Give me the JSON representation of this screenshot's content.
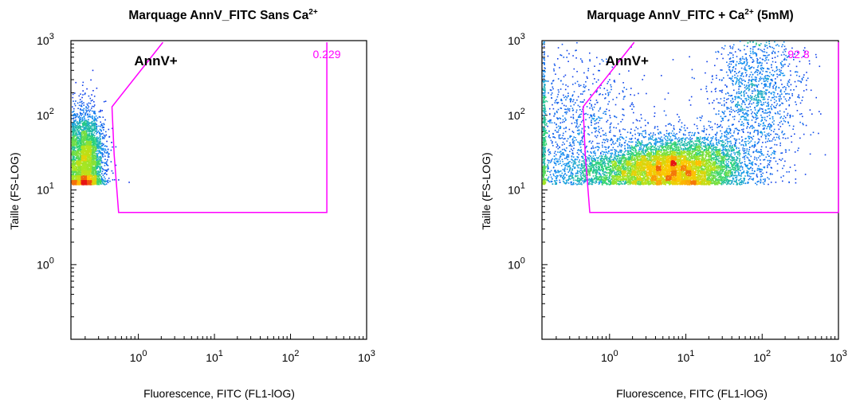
{
  "chart_data": [
    {
      "type": "scatter",
      "title": "Marquage AnnV_FITC Sans Ca",
      "title_superscript": "2+",
      "title_suffix": "",
      "xlabel": "Fluorescence, FITC (FL1-lOG)",
      "ylabel": "Taille (FS-LOG)",
      "x_scale": "log",
      "y_scale": "log",
      "xlim": [
        0.13,
        1000
      ],
      "ylim": [
        0.1,
        1000
      ],
      "x_ticks": [
        {
          "base": "10",
          "exp": "0",
          "value": 1
        },
        {
          "base": "10",
          "exp": "1",
          "value": 10
        },
        {
          "base": "10",
          "exp": "2",
          "value": 100
        },
        {
          "base": "10",
          "exp": "3",
          "value": 1000
        }
      ],
      "y_ticks": [
        {
          "base": "10",
          "exp": "0",
          "value": 1
        },
        {
          "base": "10",
          "exp": "1",
          "value": 10
        },
        {
          "base": "10",
          "exp": "2",
          "value": 100
        },
        {
          "base": "10",
          "exp": "3",
          "value": 1000
        }
      ],
      "gate": {
        "label": "AnnV+",
        "percentage": "0.229",
        "color": "#ff00ff",
        "polygon": [
          [
            2.1,
            950
          ],
          [
            0.45,
            130
          ],
          [
            0.48,
            30
          ],
          [
            0.55,
            5
          ],
          [
            300,
            5
          ],
          [
            300,
            950
          ]
        ]
      },
      "populations": [
        {
          "x_center": 0.2,
          "y_center": 25,
          "x_spread_log": 0.12,
          "y_spread_log": 0.32,
          "n": 3600,
          "peak": "green-yellow"
        }
      ],
      "grid": false,
      "legend": "none"
    },
    {
      "type": "scatter",
      "title": "Marquage AnnV_FITC + Ca",
      "title_superscript": "2+",
      "title_suffix": " (5mM)",
      "xlabel": "Fluorescence, FITC (FL1-lOG)",
      "ylabel": "Taille (FS-LOG)",
      "x_scale": "log",
      "y_scale": "log",
      "xlim": [
        0.13,
        1000
      ],
      "ylim": [
        0.1,
        1000
      ],
      "x_ticks": [
        {
          "base": "10",
          "exp": "0",
          "value": 1
        },
        {
          "base": "10",
          "exp": "1",
          "value": 10
        },
        {
          "base": "10",
          "exp": "2",
          "value": 100
        },
        {
          "base": "10",
          "exp": "3",
          "value": 1000
        }
      ],
      "y_ticks": [
        {
          "base": "10",
          "exp": "0",
          "value": 1
        },
        {
          "base": "10",
          "exp": "1",
          "value": 10
        },
        {
          "base": "10",
          "exp": "2",
          "value": 100
        },
        {
          "base": "10",
          "exp": "3",
          "value": 1000
        }
      ],
      "gate": {
        "label": "AnnV+",
        "percentage": "92.8",
        "color": "#ff00ff",
        "polygon": [
          [
            2.1,
            950
          ],
          [
            0.45,
            130
          ],
          [
            0.48,
            30
          ],
          [
            0.55,
            5
          ],
          [
            1000,
            5
          ],
          [
            1000,
            950
          ]
        ]
      },
      "populations": [
        {
          "x_center": 8,
          "y_center": 22,
          "x_spread_log": 0.45,
          "y_spread_log": 0.2,
          "n": 5200,
          "peak": "red"
        },
        {
          "x_center": 2,
          "y_center": 18,
          "x_spread_log": 0.55,
          "y_spread_log": 0.12,
          "n": 1800,
          "peak": "blue"
        },
        {
          "x_center": 80,
          "y_center": 200,
          "x_spread_log": 0.3,
          "y_spread_log": 0.5,
          "n": 1400,
          "peak": "blue"
        },
        {
          "x_center": 0.3,
          "y_center": 60,
          "x_spread_log": 0.5,
          "y_spread_log": 0.5,
          "n": 1200,
          "peak": "blue"
        }
      ],
      "grid": false,
      "legend": "none"
    }
  ]
}
